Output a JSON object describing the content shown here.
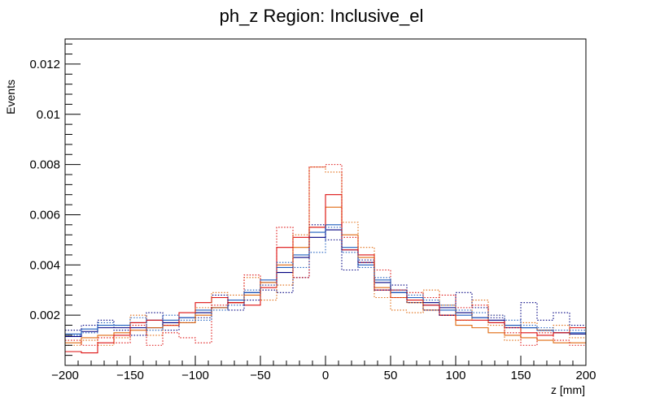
{
  "chart_data": {
    "type": "histogram",
    "title": "ph_z Region: Inclusive_el",
    "xlabel": "z [mm]",
    "ylabel": "Events",
    "xlim": [
      -200,
      200
    ],
    "ylim": [
      0,
      0.013
    ],
    "x_ticks": [
      -200,
      -150,
      -100,
      -50,
      0,
      50,
      100,
      150,
      200
    ],
    "x_tick_labels": [
      "−200",
      "−150",
      "−100",
      "−50",
      "0",
      "50",
      "100",
      "150",
      "200"
    ],
    "y_ticks": [
      0.002,
      0.004,
      0.006,
      0.008,
      0.01,
      0.012
    ],
    "y_tick_labels": [
      "0.002",
      "0.004",
      "0.006",
      "0.008",
      "0.01",
      "0.012"
    ],
    "bin_edges": [
      -200,
      -187.5,
      -175,
      -162.5,
      -150,
      -137.5,
      -125,
      -112.5,
      -100,
      -87.5,
      -75,
      -62.5,
      -50,
      -37.5,
      -25,
      -12.5,
      0,
      12.5,
      25,
      37.5,
      50,
      62.5,
      75,
      87.5,
      100,
      112.5,
      125,
      137.5,
      150,
      162.5,
      175,
      187.5,
      200
    ],
    "series": [
      {
        "name": "solid dark blue",
        "color": "#000080",
        "style": "solid",
        "values": [
          0.00115,
          0.00135,
          0.0015,
          0.0015,
          0.0015,
          0.0015,
          0.0017,
          0.0019,
          0.0021,
          0.0023,
          0.0025,
          0.0029,
          0.0033,
          0.0037,
          0.0043,
          0.0051,
          0.0054,
          0.0046,
          0.0041,
          0.0033,
          0.0029,
          0.0027,
          0.0025,
          0.0023,
          0.0021,
          0.0019,
          0.0018,
          0.0016,
          0.0015,
          0.0014,
          0.0013,
          0.00125
        ]
      },
      {
        "name": "solid blue",
        "color": "#1f5fbf",
        "style": "solid",
        "values": [
          0.00125,
          0.00145,
          0.0016,
          0.0016,
          0.0017,
          0.0018,
          0.0018,
          0.0019,
          0.0022,
          0.0023,
          0.0026,
          0.0029,
          0.0034,
          0.0039,
          0.0044,
          0.0053,
          0.0056,
          0.0047,
          0.004,
          0.0034,
          0.0029,
          0.0027,
          0.0024,
          0.0022,
          0.002,
          0.0019,
          0.0017,
          0.0016,
          0.0015,
          0.0014,
          0.0013,
          0.0013
        ]
      },
      {
        "name": "solid orange",
        "color": "#e06a10",
        "style": "solid",
        "values": [
          0.0009,
          0.0011,
          0.0012,
          0.0013,
          0.0014,
          0.0015,
          0.0016,
          0.0017,
          0.002,
          0.0023,
          0.0025,
          0.0028,
          0.0033,
          0.004,
          0.0047,
          0.0055,
          0.0063,
          0.0052,
          0.0043,
          0.0031,
          0.0027,
          0.0025,
          0.0022,
          0.002,
          0.0016,
          0.0015,
          0.0013,
          0.0012,
          0.0011,
          0.001,
          0.0009,
          0.0009
        ]
      },
      {
        "name": "solid red",
        "color": "#dd1111",
        "style": "solid",
        "values": [
          0.00055,
          0.0005,
          0.0009,
          0.0012,
          0.0017,
          0.0018,
          0.0016,
          0.0021,
          0.0025,
          0.0027,
          0.0025,
          0.0024,
          0.0031,
          0.0047,
          0.0051,
          0.0055,
          0.0068,
          0.0046,
          0.0044,
          0.003,
          0.003,
          0.0026,
          0.0024,
          0.002,
          0.0018,
          0.0018,
          0.0017,
          0.0015,
          0.0013,
          0.0012,
          0.0013,
          0.0015
        ]
      },
      {
        "name": "dotted dark blue",
        "color": "#000080",
        "style": "dotted",
        "values": [
          0.0014,
          0.0016,
          0.0018,
          0.0014,
          0.0012,
          0.0021,
          0.0014,
          0.0017,
          0.0019,
          0.0028,
          0.0022,
          0.0026,
          0.003,
          0.0029,
          0.0035,
          0.0056,
          0.005,
          0.0038,
          0.0042,
          0.003,
          0.0032,
          0.0025,
          0.0022,
          0.002,
          0.0029,
          0.0023,
          0.0019,
          0.0015,
          0.0025,
          0.0018,
          0.0021,
          0.0016
        ]
      },
      {
        "name": "dotted orange",
        "color": "#e06a10",
        "style": "dotted",
        "values": [
          0.0008,
          0.001,
          0.0008,
          0.0011,
          0.002,
          0.0012,
          0.0016,
          0.0017,
          0.0023,
          0.0029,
          0.0028,
          0.0035,
          0.0026,
          0.0032,
          0.0052,
          0.0079,
          0.0077,
          0.0057,
          0.0047,
          0.0027,
          0.0022,
          0.0021,
          0.003,
          0.0024,
          0.0018,
          0.0026,
          0.0016,
          0.001,
          0.0017,
          0.0014,
          0.0016,
          0.0011
        ]
      },
      {
        "name": "dotted red",
        "color": "#dd1111",
        "style": "dotted",
        "values": [
          0.001,
          0.0008,
          0.0011,
          0.0009,
          0.0016,
          0.0008,
          0.0013,
          0.0011,
          0.0009,
          0.0024,
          0.0025,
          0.0036,
          0.0032,
          0.0055,
          0.0035,
          0.0079,
          0.008,
          0.0051,
          0.0041,
          0.0038,
          0.0027,
          0.0029,
          0.0027,
          0.0028,
          0.0023,
          0.0024,
          0.002,
          0.0013,
          0.0008,
          0.0013,
          0.001,
          0.0008
        ]
      },
      {
        "name": "dotted blue",
        "color": "#1f5fbf",
        "style": "dotted",
        "values": [
          0.0012,
          0.0013,
          0.0017,
          0.0016,
          0.0019,
          0.0014,
          0.002,
          0.0018,
          0.0018,
          0.0022,
          0.0024,
          0.003,
          0.0032,
          0.0041,
          0.0039,
          0.0045,
          0.0055,
          0.0045,
          0.0039,
          0.0035,
          0.003,
          0.0028,
          0.0026,
          0.0024,
          0.0022,
          0.0021,
          0.002,
          0.0018,
          0.0016,
          0.0015,
          0.0014,
          0.0014
        ]
      }
    ]
  }
}
